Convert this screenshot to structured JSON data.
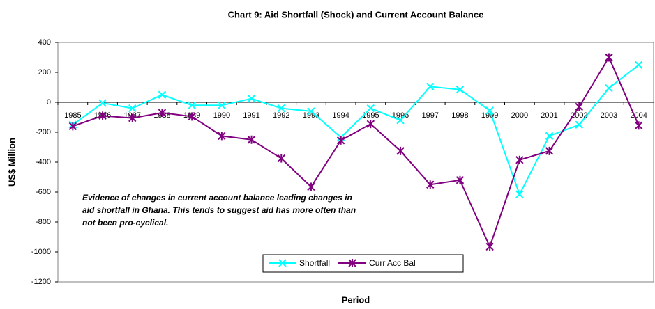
{
  "chart_data": {
    "type": "line",
    "title": "Chart 9: Aid Shortfall (Shock) and Current Account Balance",
    "x_label": "Period",
    "y_label": "US$ Million",
    "annotation": [
      "Evidence of changes in current account balance leading changes in",
      "aid shortfall in Ghana. This tends to suggest aid has more often than",
      "not been pro-cyclical."
    ],
    "categories": [
      "1985",
      "1986",
      "1987",
      "1988",
      "1989",
      "1990",
      "1991",
      "1992",
      "1993",
      "1994",
      "1995",
      "1996",
      "1997",
      "1998",
      "1999",
      "2000",
      "2001",
      "2002",
      "2003",
      "2004"
    ],
    "series": [
      {
        "name": "Shortfall",
        "color": "#00ffff",
        "marker": "x",
        "values": [
          -150,
          -5,
          -40,
          50,
          -20,
          -20,
          25,
          -40,
          -60,
          -235,
          -40,
          -120,
          105,
          85,
          -55,
          -615,
          -225,
          -150,
          95,
          250
        ]
      },
      {
        "name": "Curr Acc Bal",
        "color": "#800080",
        "marker": "star",
        "values": [
          -160,
          -90,
          -105,
          -70,
          -95,
          -225,
          -250,
          -375,
          -565,
          -255,
          -145,
          -325,
          -550,
          -520,
          -965,
          -385,
          -325,
          -30,
          300,
          -155
        ]
      }
    ],
    "ylim": [
      -1200,
      400
    ],
    "yticks": [
      -1200,
      -1000,
      -800,
      -600,
      -400,
      -200,
      0,
      200,
      400
    ],
    "legend": "bottom"
  }
}
